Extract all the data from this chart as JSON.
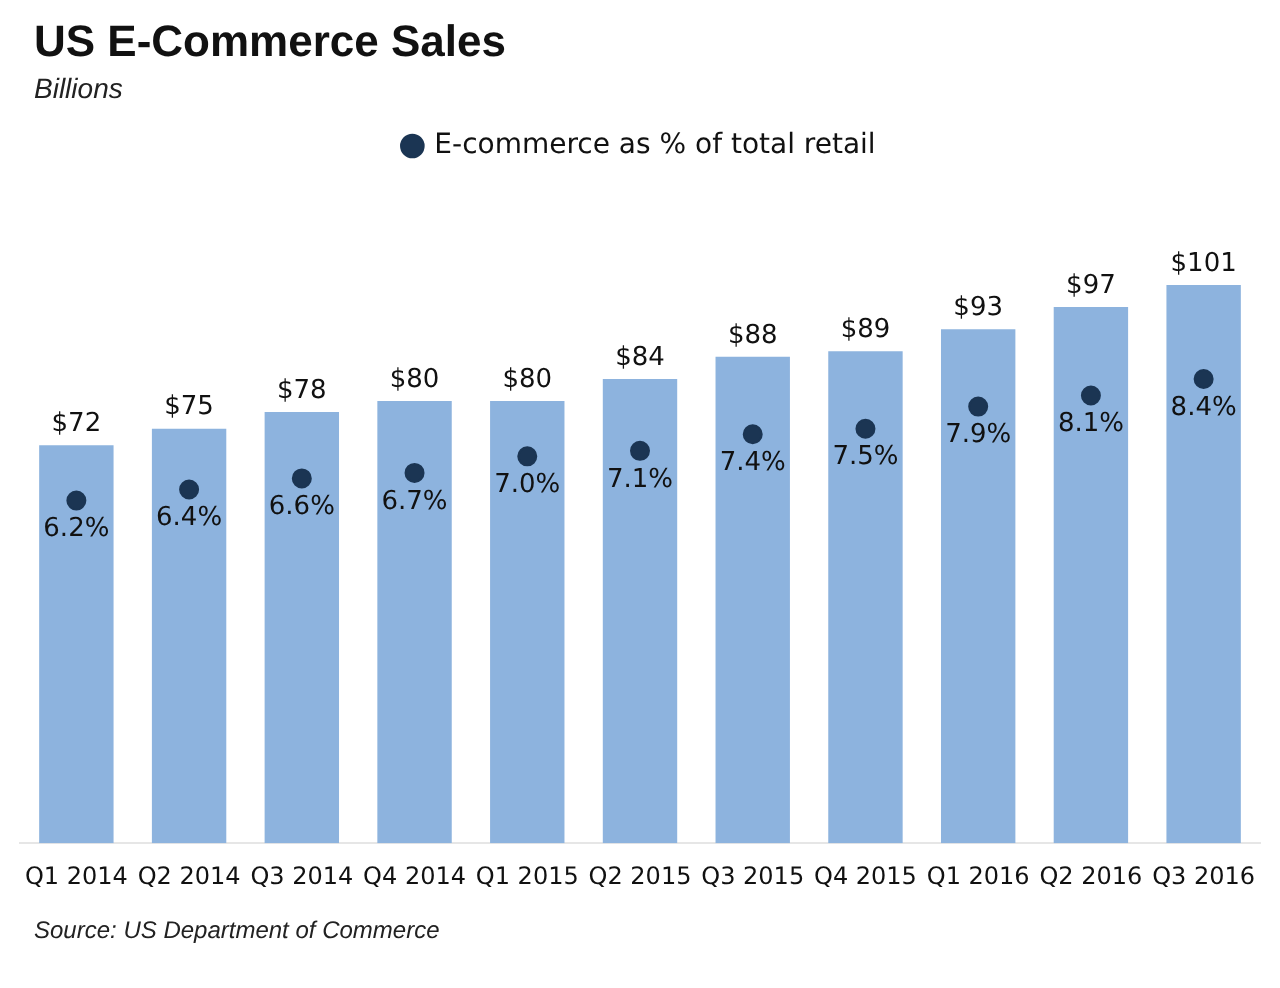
{
  "chart_data": {
    "type": "bar",
    "title": "US E-Commerce Sales",
    "subtitle": "Billions",
    "categories": [
      "Q1 2014",
      "Q2 2014",
      "Q3 2014",
      "Q4 2014",
      "Q1 2015",
      "Q2 2015",
      "Q3 2015",
      "Q4 2015",
      "Q1 2016",
      "Q2 2016",
      "Q3 2016"
    ],
    "series": [
      {
        "color": "#8db3de",
        "values": [
          72,
          75,
          78,
          80,
          80,
          84,
          88,
          89,
          93,
          97,
          101
        ],
        "value_labels": [
          "$72",
          "$75",
          "$78",
          "$80",
          "$80",
          "$84",
          "$88",
          "$89",
          "$93",
          "$97",
          "$101"
        ]
      },
      {
        "type": "scatter",
        "name": "E-commerce as % of total retail",
        "axis": "y2",
        "color": "#1b3553",
        "marker": "circle",
        "values": [
          6.2,
          6.4,
          6.6,
          6.7,
          7.0,
          7.1,
          7.4,
          7.5,
          7.9,
          8.1,
          8.4
        ],
        "value_labels": [
          "6.2%",
          "6.4%",
          "6.6%",
          "6.7%",
          "7.0%",
          "7.1%",
          "7.4%",
          "7.5%",
          "7.9%",
          "8.1%",
          "8.4%"
        ]
      }
    ],
    "legend": "top",
    "grid": false,
    "tick_labels": "x",
    "annotations": [
      "Source: US Department of Commerce"
    ]
  }
}
